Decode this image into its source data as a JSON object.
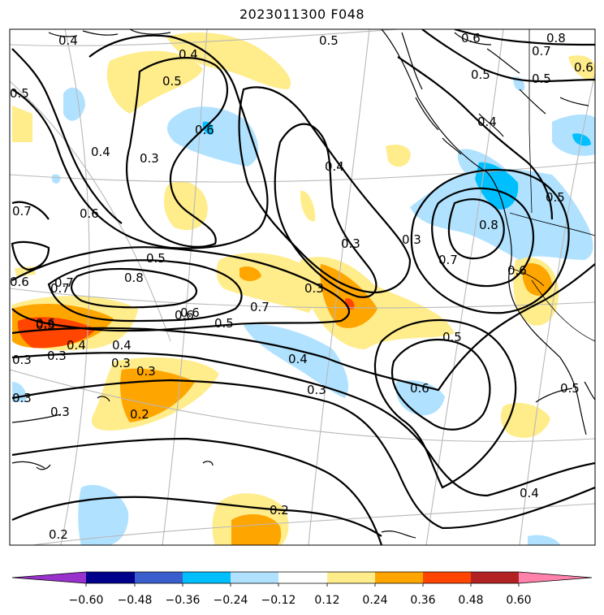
{
  "title": "2023011300 F048",
  "colorbar": {
    "ticks": [
      "−0.60",
      "−0.48",
      "−0.36",
      "−0.24",
      "−0.12",
      "0.12",
      "0.24",
      "0.36",
      "0.48",
      "0.60"
    ],
    "colors": [
      "#9932cc",
      "#00008b",
      "#3a5fcd",
      "#00bfff",
      "#b0e2ff",
      "#ffffff",
      "#ffec8b",
      "#ffa500",
      "#ff4500",
      "#b22222",
      "#ff82ab"
    ]
  },
  "contour_labels": [
    "0.4",
    "0.5",
    "0.5",
    "0.6",
    "0.8",
    "0.7",
    "0.6",
    "0.4",
    "0.6",
    "0.3",
    "0.4",
    "0.5",
    "0.4",
    "0.7",
    "0.6",
    "0.8",
    "0.7",
    "0.6",
    "0.5",
    "0.5",
    "0.3",
    "0.3",
    "0.3",
    "0.5",
    "0.7",
    "0.6",
    "0.5",
    "0.4",
    "0.3",
    "0.6",
    "0.5",
    "0.4",
    "0.3",
    "0.3",
    "0.3",
    "0.3",
    "0.2",
    "0.2",
    "0.2",
    "0.4",
    "0.5",
    "0.6",
    "0.5",
    "0.4",
    "0.6",
    "0.7",
    "0.3",
    "0.6",
    "0.3",
    "0.4",
    "0.8",
    "0.7",
    "0.3"
  ]
}
